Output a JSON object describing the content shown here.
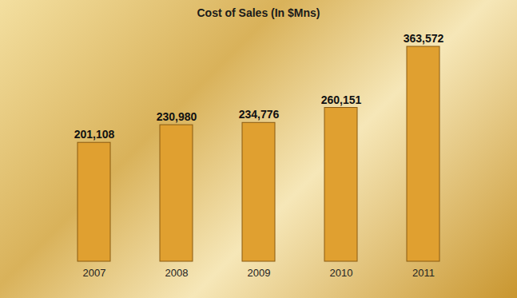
{
  "chart_data": {
    "type": "bar",
    "title": "Cost of Sales (In $Mns)",
    "categories": [
      "2007",
      "2008",
      "2009",
      "2010",
      "2011"
    ],
    "values": [
      201108,
      230980,
      234776,
      260151,
      363572
    ],
    "value_labels": [
      "201,108",
      "230,980",
      "234,776",
      "260,151",
      "363,572"
    ],
    "color": "#e0a030",
    "data_labels": true,
    "tick_labels": "x"
  }
}
